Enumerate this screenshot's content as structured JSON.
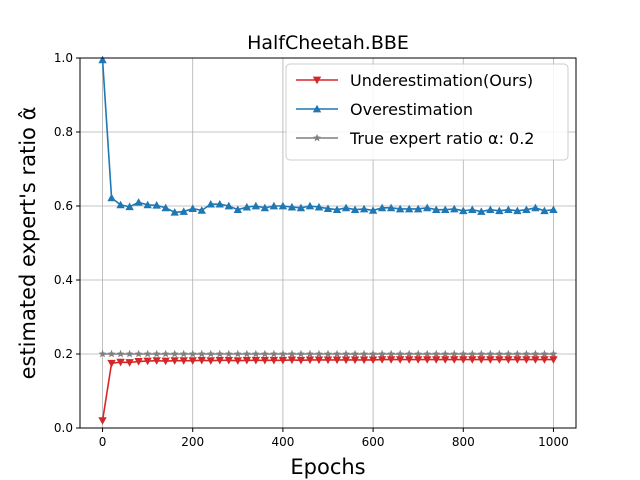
{
  "chart_data": {
    "type": "line",
    "title": "HalfCheetah.BBE",
    "xlabel": "Epochs",
    "ylabel": "estimated expert's ratio α̂",
    "xlim": [
      -50,
      1050
    ],
    "ylim": [
      0.0,
      1.0
    ],
    "x_ticks": [
      0,
      200,
      400,
      600,
      800,
      1000
    ],
    "y_ticks": [
      0.0,
      0.2,
      0.4,
      0.6,
      0.8,
      1.0
    ],
    "x_tick_labels": [
      "0",
      "200",
      "400",
      "600",
      "800",
      "1000"
    ],
    "y_tick_labels": [
      "0.0",
      "0.2",
      "0.4",
      "0.6",
      "0.8",
      "1.0"
    ],
    "grid": true,
    "legend_position": "top-right",
    "x": [
      0,
      20,
      40,
      60,
      80,
      100,
      120,
      140,
      160,
      180,
      200,
      220,
      240,
      260,
      280,
      300,
      320,
      340,
      360,
      380,
      400,
      420,
      440,
      460,
      480,
      500,
      520,
      540,
      560,
      580,
      600,
      620,
      640,
      660,
      680,
      700,
      720,
      740,
      760,
      780,
      800,
      820,
      840,
      860,
      880,
      900,
      920,
      940,
      960,
      980,
      1000
    ],
    "series": [
      {
        "name": "Underestimation(Ours)",
        "color": "#d62728",
        "marker": "triangle-down",
        "values": [
          0.02,
          0.175,
          0.178,
          0.177,
          0.18,
          0.181,
          0.182,
          0.181,
          0.182,
          0.182,
          0.182,
          0.183,
          0.182,
          0.183,
          0.183,
          0.182,
          0.183,
          0.183,
          0.183,
          0.183,
          0.183,
          0.184,
          0.183,
          0.184,
          0.184,
          0.184,
          0.184,
          0.184,
          0.184,
          0.184,
          0.184,
          0.185,
          0.185,
          0.185,
          0.185,
          0.185,
          0.185,
          0.185,
          0.185,
          0.185,
          0.185,
          0.185,
          0.185,
          0.185,
          0.185,
          0.185,
          0.185,
          0.185,
          0.185,
          0.185,
          0.185
        ]
      },
      {
        "name": "Overestimation",
        "color": "#1f77b4",
        "marker": "triangle-up",
        "values": [
          0.995,
          0.622,
          0.603,
          0.598,
          0.61,
          0.603,
          0.602,
          0.595,
          0.583,
          0.585,
          0.593,
          0.588,
          0.605,
          0.605,
          0.6,
          0.59,
          0.597,
          0.6,
          0.595,
          0.6,
          0.6,
          0.597,
          0.595,
          0.6,
          0.597,
          0.593,
          0.59,
          0.595,
          0.59,
          0.592,
          0.588,
          0.595,
          0.595,
          0.592,
          0.592,
          0.592,
          0.595,
          0.59,
          0.59,
          0.592,
          0.587,
          0.59,
          0.585,
          0.59,
          0.587,
          0.59,
          0.587,
          0.59,
          0.595,
          0.587,
          0.59
        ]
      },
      {
        "name": "True expert ratio α: 0.2",
        "color": "#7f7f7f",
        "marker": "star",
        "values": [
          0.2,
          0.2,
          0.2,
          0.2,
          0.2,
          0.2,
          0.2,
          0.2,
          0.2,
          0.2,
          0.2,
          0.2,
          0.2,
          0.2,
          0.2,
          0.2,
          0.2,
          0.2,
          0.2,
          0.2,
          0.2,
          0.2,
          0.2,
          0.2,
          0.2,
          0.2,
          0.2,
          0.2,
          0.2,
          0.2,
          0.2,
          0.2,
          0.2,
          0.2,
          0.2,
          0.2,
          0.2,
          0.2,
          0.2,
          0.2,
          0.2,
          0.2,
          0.2,
          0.2,
          0.2,
          0.2,
          0.2,
          0.2,
          0.2,
          0.2,
          0.2
        ]
      }
    ]
  }
}
